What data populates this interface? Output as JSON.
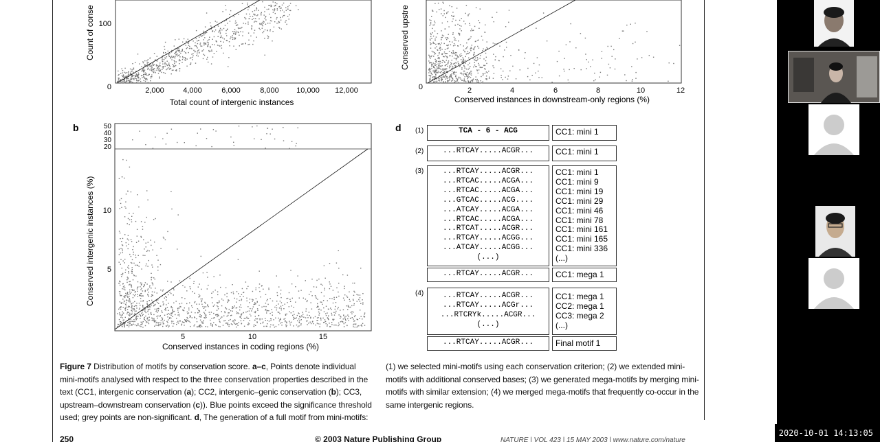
{
  "panels": {
    "a_left": {
      "ylabel": "Count of conse",
      "xlabel": "Total count of intergenic instances",
      "yticks": [
        "0",
        "100"
      ],
      "xticks": [
        "2,000",
        "4,000",
        "6,000",
        "8,000",
        "10,000",
        "12,000"
      ]
    },
    "a_right": {
      "ylabel": "Conserved upstre",
      "xlabel": "Conserved instances in downstream-only regions (%)",
      "yticks": [
        "0"
      ],
      "xticks": [
        "2",
        "4",
        "6",
        "8",
        "10",
        "12"
      ]
    },
    "b": {
      "letter": "b",
      "ylabel": "Conserved intergenic instances (%)",
      "xlabel": "Conserved instances in coding regions (%)",
      "yticks_upper": [
        "50",
        "40",
        "30",
        "20"
      ],
      "yticks": [
        "10",
        "5"
      ],
      "xticks": [
        "5",
        "10",
        "15"
      ]
    },
    "d": {
      "letter": "d"
    }
  },
  "motif_panel": {
    "groups": [
      {
        "label": "(1)",
        "rows": [
          "TCA - 6 - ACG"
        ],
        "cc": [
          "CC1: mini 1"
        ]
      },
      {
        "label": "(2)",
        "rows": [
          "...RTCAY.....ACGR..."
        ],
        "cc": [
          "CC1: mini 1"
        ]
      },
      {
        "label": "(3)",
        "rows": [
          "...RTCAY.....ACGR...",
          "...RTCAC.....ACGA...",
          "...RTCAC.....ACGA...",
          "...GTCAC.....ACG....",
          "...ATCAY.....ACGA...",
          "...RTCAC.....ACGA...",
          "...RTCAT.....ACGR...",
          "...RTCAY.....ACGG...",
          "...ATCAY.....ACGG...",
          "(...)"
        ],
        "cc": [
          "CC1: mini 1",
          "CC1: mini 9",
          "CC1: mini 19",
          "CC1: mini 29",
          "CC1: mini 46",
          "CC1: mini 78",
          "CC1: mini 161",
          "CC1: mini 165",
          "CC1: mini 336",
          "(...)"
        ],
        "result_row": "...RTCAY.....ACGR...",
        "result_cc": "CC1: mega 1"
      },
      {
        "label": "(4)",
        "rows": [
          "...RTCAY.....ACGR...",
          "...RTCAY.....ACGr...",
          "...RTCRYk.....ACGR...",
          "(...)"
        ],
        "cc": [
          "CC1: mega 1",
          "CC2: mega 1",
          "CC3: mega 2",
          "(...)"
        ],
        "result_row": "...RTCAY.....ACGR...",
        "result_cc": "Final motif 1"
      }
    ]
  },
  "caption": {
    "fig_label": "Figure 7",
    "left_text_1": " Distribution of motifs by conservation score. ",
    "a_c": "a–c",
    "left_text_2": ", Points denote individual mini-motifs analysed with respect to the three conservation properties described in the text (CC1, intergenic conservation (",
    "a": "a",
    "left_text_3": "); CC2, intergenic–genic conservation (",
    "b": "b",
    "left_text_4": "); CC3, upstream–downstream conservation (",
    "c": "c",
    "left_text_5": ")). Blue points exceed the significance threshold used; grey points are non-significant. ",
    "d": "d",
    "left_text_6": ", The generation of a full motif from mini-motifs:",
    "right_text": "(1) we selected mini-motifs using each conservation criterion; (2) we extended mini-motifs with additional conserved bases; (3) we generated mega-motifs by merging mini-motifs with similar extension; (4) we merged mega-motifs that frequently co-occur in the same intergenic regions."
  },
  "footer": {
    "page": "250",
    "copyright": "© 2003 Nature Publishing Group",
    "journal": "NATURE | VOL 423 | 15 MAY 2003 | www.nature.com/nature"
  },
  "timestamp": "2020-10-01 14:13:05",
  "colors": {
    "page_bg": "#ffffff",
    "sidebar_bg": "#000000",
    "point_grey": "#777777"
  }
}
